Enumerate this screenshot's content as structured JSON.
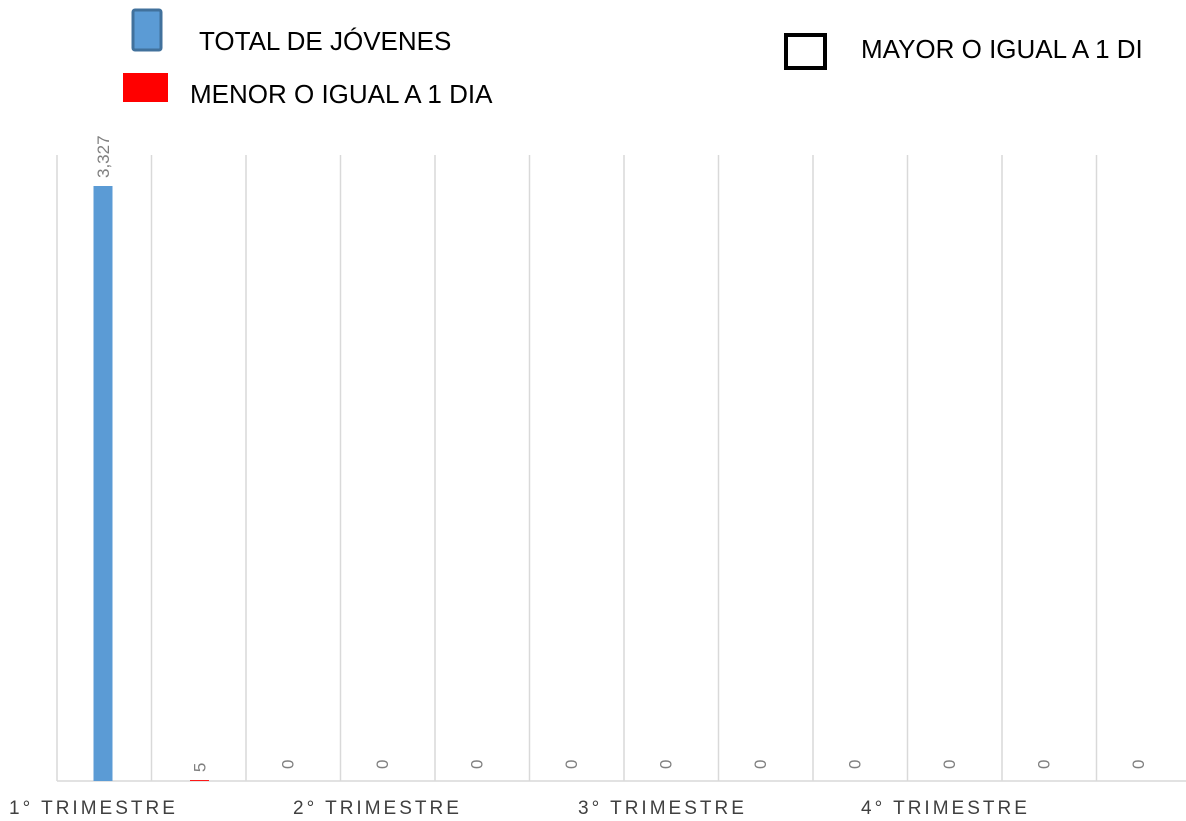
{
  "chart_data": {
    "type": "bar",
    "categories": [
      "1° TRIMESTRE",
      "2° TRIMESTRE",
      "3° TRIMESTRE",
      "4° TRIMESTRE"
    ],
    "slot_values": [
      3327,
      5,
      0,
      0,
      0,
      0,
      0,
      0,
      0,
      0,
      0,
      0
    ],
    "slot_labels": [
      "3,327",
      "5",
      "0",
      "0",
      "0",
      "0",
      "0",
      "0",
      "0",
      "0",
      "0",
      "0"
    ],
    "series": [
      {
        "name": "TOTAL DE JÓVENES",
        "color": "#5b9bd5",
        "values": [
          3327,
          0,
          0,
          0
        ],
        "labels": [
          "3,327",
          "0",
          "0",
          "0"
        ]
      },
      {
        "name": "MENOR O IGUAL A 1 DIA",
        "color": "#ff0000",
        "values": [
          5,
          0,
          0,
          0
        ],
        "labels": [
          "5",
          "0",
          "0",
          "0"
        ]
      },
      {
        "name": "MAYOR O IGUAL A 1 DI",
        "color": "#ffffff",
        "values": [
          0,
          0,
          0,
          0
        ],
        "labels": [
          "0",
          "0",
          "0",
          "0"
        ]
      }
    ],
    "ylim": [
      0,
      3450
    ],
    "grid": true,
    "legend_position": "top"
  }
}
